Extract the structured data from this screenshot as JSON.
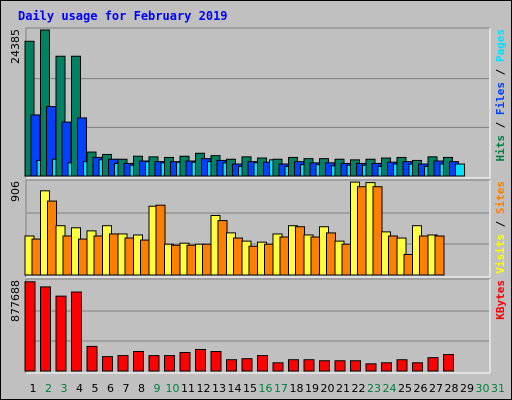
{
  "chart_data": {
    "title": "Daily usage for February 2019",
    "type": "bar",
    "x": [
      "1",
      "2",
      "3",
      "4",
      "5",
      "6",
      "7",
      "8",
      "9",
      "10",
      "11",
      "12",
      "13",
      "14",
      "15",
      "16",
      "17",
      "18",
      "19",
      "20",
      "21",
      "22",
      "23",
      "24",
      "25",
      "26",
      "27",
      "28",
      "29",
      "30",
      "31"
    ],
    "weekend_days": [
      "2",
      "3",
      "9",
      "10",
      "16",
      "17",
      "23",
      "24",
      "30",
      "31"
    ],
    "panels": [
      {
        "id": "hits",
        "max_label": "24385",
        "ylim": [
          0,
          24385
        ],
        "legend": [
          {
            "text": "Hits",
            "color": "#008040"
          },
          {
            "text": " / ",
            "color": "#000000"
          },
          {
            "text": "Files",
            "color": "#0040ff"
          },
          {
            "text": " / ",
            "color": "#000000"
          },
          {
            "text": "Pages",
            "color": "#00e0ff"
          }
        ],
        "series": [
          {
            "name": "Hits",
            "color": "#008060",
            "values": [
              22500,
              24385,
              20000,
              20000,
              4000,
              3600,
              2800,
              3300,
              3200,
              3100,
              3300,
              3800,
              3400,
              2800,
              3200,
              3000,
              2800,
              3100,
              2900,
              2900,
              2800,
              2700,
              2800,
              3000,
              3100,
              2600,
              3200,
              3100,
              0,
              0,
              0
            ]
          },
          {
            "name": "Files",
            "color": "#0040ff",
            "values": [
              10200,
              11600,
              9000,
              9700,
              3100,
              2800,
              2100,
              2500,
              2400,
              2400,
              2500,
              2900,
              2600,
              2000,
              2400,
              2300,
              2000,
              2400,
              2200,
              2200,
              2100,
              2100,
              2100,
              2300,
              2400,
              2000,
              2500,
              2400,
              0,
              0,
              0
            ]
          },
          {
            "name": "Pages",
            "color": "#00e0ff",
            "values": [
              2600,
              2800,
              2200,
              2400,
              2700,
              2100,
              1800,
              2400,
              2200,
              2300,
              2300,
              2400,
              2200,
              1600,
              2200,
              2700,
              1600,
              1900,
              1900,
              1700,
              1800,
              1800,
              1600,
              2000,
              2000,
              1600,
              2000,
              2000,
              0,
              0,
              0
            ]
          }
        ]
      },
      {
        "id": "visits",
        "max_label": "906",
        "ylim": [
          0,
          906
        ],
        "legend": [
          {
            "text": "Visits",
            "color": "#ffff00"
          },
          {
            "text": " / ",
            "color": "#000000"
          },
          {
            "text": "Sites",
            "color": "#ff8000"
          }
        ],
        "series": [
          {
            "name": "Visits",
            "color": "#ffff40",
            "values": [
              380,
              820,
              480,
              460,
              430,
              480,
              400,
              390,
              670,
              300,
              310,
              300,
              580,
              410,
              330,
              320,
              400,
              480,
              390,
              470,
              330,
              905,
              900,
              420,
              360,
              480,
              390,
              0,
              0,
              0,
              0
            ]
          },
          {
            "name": "Sites",
            "color": "#ff8000",
            "values": [
              350,
              720,
              380,
              350,
              380,
              400,
              360,
              340,
              680,
              290,
              290,
              300,
              530,
              360,
              280,
              300,
              370,
              470,
              370,
              410,
              300,
              860,
              860,
              380,
              200,
              380,
              380,
              0,
              0,
              0,
              0
            ]
          }
        ]
      },
      {
        "id": "kbytes",
        "max_label": "877688",
        "ylim": [
          0,
          877688
        ],
        "legend": [
          {
            "text": "KBytes",
            "color": "#ff0000"
          }
        ],
        "series": [
          {
            "name": "KBytes",
            "color": "#ff0000",
            "values": [
              870000,
              820000,
              730000,
              770000,
              240000,
              140000,
              150000,
              190000,
              150000,
              150000,
              180000,
              210000,
              190000,
              110000,
              120000,
              150000,
              80000,
              110000,
              110000,
              100000,
              100000,
              100000,
              70000,
              80000,
              110000,
              80000,
              130000,
              160000,
              0,
              0,
              0
            ]
          }
        ]
      }
    ]
  }
}
